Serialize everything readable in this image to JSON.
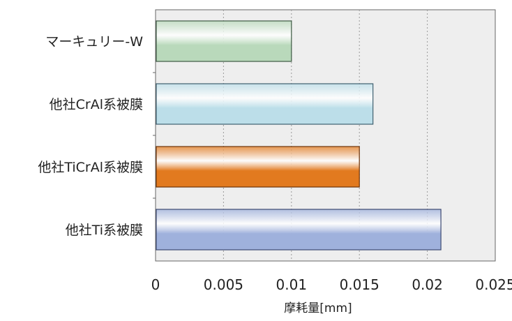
{
  "chart_data": {
    "type": "bar",
    "orientation": "horizontal",
    "categories": [
      "マーキュリー-W",
      "他社CrAl系被膜",
      "他社TiCrAl系被膜",
      "他社Ti系被膜"
    ],
    "values": [
      0.01,
      0.016,
      0.015,
      0.021
    ],
    "xlabel": "摩耗量[mm]",
    "xlim": [
      0,
      0.025
    ],
    "xticks": [
      "0",
      "0.005",
      "0.01",
      "0.015",
      "0.02",
      "0.025"
    ],
    "grid": true,
    "legend": "none"
  },
  "colors": {
    "bars": [
      "#b9d9bb",
      "#bcdee9",
      "#e27a1f",
      "#9fb1dc"
    ],
    "bar_edges": [
      "#3e5a44",
      "#3f5f6f",
      "#6e3308",
      "#3d4a72"
    ],
    "plot_background": "#eeeeee",
    "grid": "#9a9a9a"
  }
}
